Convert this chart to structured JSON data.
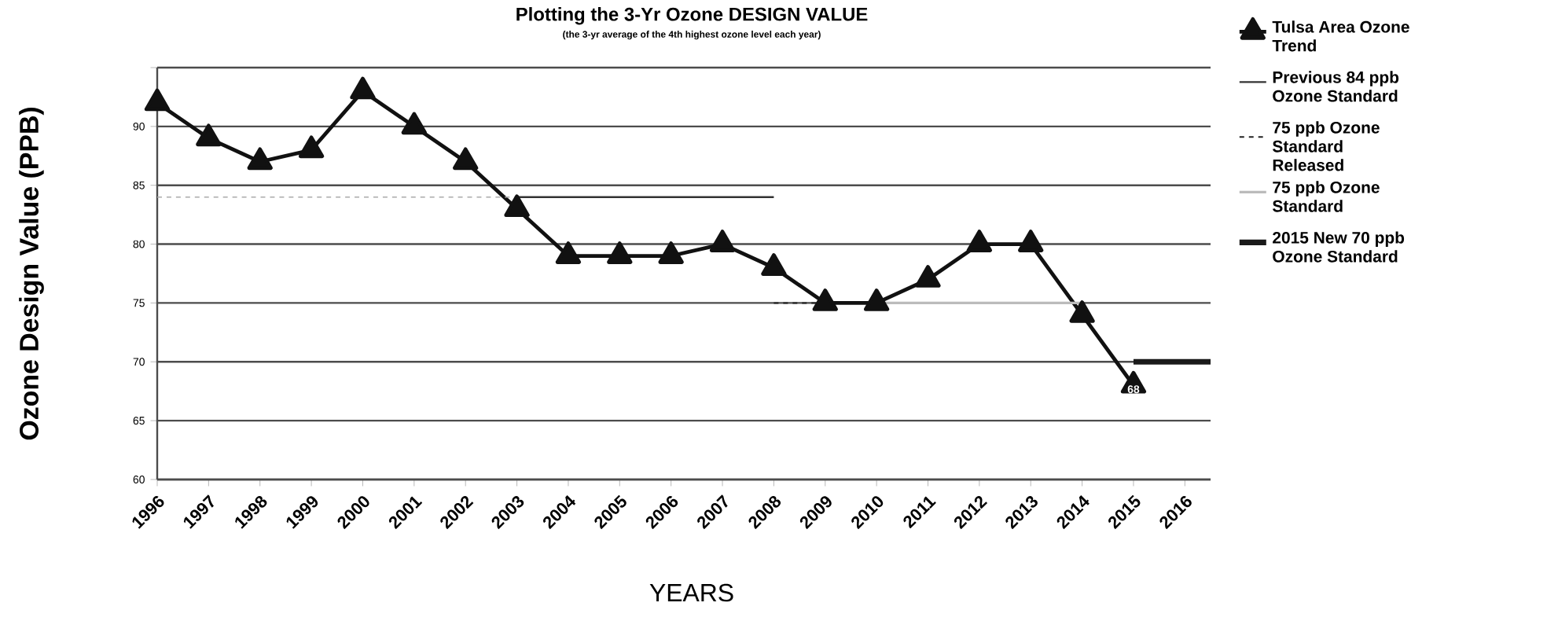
{
  "chart_data": {
    "type": "line",
    "title": "Plotting the 3-Yr Ozone DESIGN VALUE",
    "subtitle": "(the 3-yr average of the 4th highest ozone level each year)",
    "xlabel": "YEARS",
    "ylabel": "Ozone Design Value (PPB)",
    "xlim": [
      1996,
      2016.5
    ],
    "xticks": [
      1996,
      1997,
      1998,
      1999,
      2000,
      2001,
      2002,
      2003,
      2004,
      2005,
      2006,
      2007,
      2008,
      2009,
      2010,
      2011,
      2012,
      2013,
      2014,
      2015,
      2016
    ],
    "ylim": [
      60,
      95
    ],
    "yticks": [
      60,
      65,
      70,
      75,
      80,
      85,
      90,
      {
        "value": 95,
        "label": null
      }
    ],
    "grid": "y",
    "legend": "right",
    "series": [
      {
        "name": "Tulsa Area Ozone Trend",
        "color": "#111111",
        "marker": "triangle",
        "x": [
          1996,
          1997,
          1998,
          1999,
          2000,
          2001,
          2002,
          2003,
          2004,
          2005,
          2006,
          2007,
          2008,
          2009,
          2010,
          2011,
          2012,
          2013,
          2014,
          2015
        ],
        "values": [
          92,
          89,
          87,
          88,
          93,
          90,
          87,
          83,
          79,
          79,
          79,
          80,
          78,
          75,
          75,
          77,
          80,
          80,
          74,
          68
        ],
        "value_labels": [
          null,
          null,
          null,
          null,
          null,
          null,
          null,
          null,
          null,
          null,
          null,
          null,
          null,
          null,
          null,
          null,
          null,
          null,
          null,
          "68"
        ]
      },
      {
        "name": "Previous 84 ppb Ozone Standard",
        "color": "#333333",
        "line_style": "solid",
        "x": [
          2003,
          2008
        ],
        "values": [
          84,
          84
        ]
      },
      {
        "color": "#aaaaaa",
        "line_style": "dashed",
        "x": [
          1996,
          2003
        ],
        "values": [
          84,
          84
        ]
      },
      {
        "name": "75 ppb Ozone Standard Released",
        "color": "#222222",
        "line_style": "dashed",
        "x": [
          2008,
          2009
        ],
        "values": [
          75,
          75
        ]
      },
      {
        "name": "75 ppb Ozone Standard",
        "color": "#bbbbbb",
        "line_style": "solid",
        "x": [
          2010,
          2014
        ],
        "values": [
          75,
          75
        ]
      },
      {
        "name": "2015 New 70 ppb Ozone Standard",
        "color": "#1a1a1a",
        "line_style": "solid",
        "x": [
          2015,
          2016.5
        ],
        "values": [
          70,
          70
        ]
      }
    ]
  }
}
